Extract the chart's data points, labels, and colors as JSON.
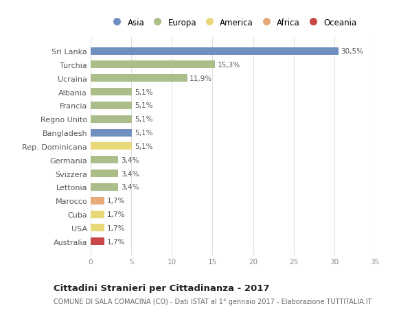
{
  "countries": [
    "Sri Lanka",
    "Turchia",
    "Ucraina",
    "Albania",
    "Francia",
    "Regno Unito",
    "Bangladesh",
    "Rep. Dominicana",
    "Germania",
    "Svizzera",
    "Lettonia",
    "Marocco",
    "Cuba",
    "USA",
    "Australia"
  ],
  "values": [
    30.5,
    15.3,
    11.9,
    5.1,
    5.1,
    5.1,
    5.1,
    5.1,
    3.4,
    3.4,
    3.4,
    1.7,
    1.7,
    1.7,
    1.7
  ],
  "labels": [
    "30,5%",
    "15,3%",
    "11,9%",
    "5,1%",
    "5,1%",
    "5,1%",
    "5,1%",
    "5,1%",
    "3,4%",
    "3,4%",
    "3,4%",
    "1,7%",
    "1,7%",
    "1,7%",
    "1,7%"
  ],
  "continents": [
    "Asia",
    "Europa",
    "Europa",
    "Europa",
    "Europa",
    "Europa",
    "Asia",
    "America",
    "Europa",
    "Europa",
    "Europa",
    "Africa",
    "America",
    "America",
    "Oceania"
  ],
  "continent_colors": {
    "Asia": "#6f8fbe",
    "Europa": "#abbe8a",
    "America": "#e8d878",
    "Africa": "#e8aa78",
    "Oceania": "#c84848"
  },
  "legend_order": [
    "Asia",
    "Europa",
    "America",
    "Africa",
    "Oceania"
  ],
  "title": "Cittadini Stranieri per Cittadinanza - 2017",
  "subtitle": "COMUNE DI SALA COMACINA (CO) - Dati ISTAT al 1° gennaio 2017 - Elaborazione TUTTITALIA.IT",
  "xlim": [
    0,
    35
  ],
  "xticks": [
    0,
    5,
    10,
    15,
    20,
    25,
    30,
    35
  ],
  "background_color": "#ffffff",
  "grid_color": "#e0e0e0",
  "bar_height": 0.55
}
